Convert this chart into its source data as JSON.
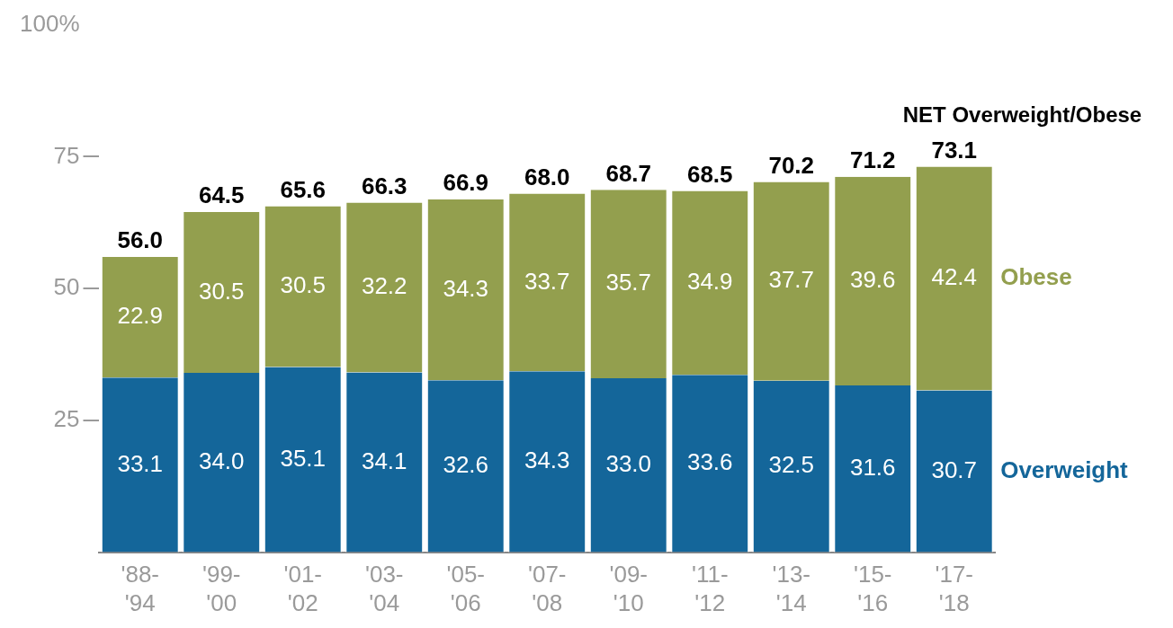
{
  "chart_data": {
    "type": "bar",
    "stacked": true,
    "categories": [
      "'88-'94",
      "'99-'00",
      "'01-'02",
      "'03-'04",
      "'05-'06",
      "'07-'08",
      "'09-'10",
      "'11-'12",
      "'13-'14",
      "'15-'16",
      "'17-'18"
    ],
    "series": [
      {
        "name": "Overweight",
        "color": "#14669a",
        "values": [
          33.1,
          34.0,
          35.1,
          34.1,
          32.6,
          34.3,
          33.0,
          33.6,
          32.5,
          31.6,
          30.7
        ],
        "value_labels": [
          "33.1",
          "34.0",
          "35.1",
          "34.1",
          "32.6",
          "34.3",
          "33.0",
          "33.6",
          "32.5",
          "31.6",
          "30.7"
        ]
      },
      {
        "name": "Obese",
        "color": "#939f4e",
        "values": [
          22.9,
          30.5,
          30.5,
          32.2,
          34.3,
          33.7,
          35.7,
          34.9,
          37.7,
          39.6,
          42.4
        ],
        "value_labels": [
          "22.9",
          "30.5",
          "30.5",
          "32.2",
          "34.3",
          "33.7",
          "35.7",
          "34.9",
          "37.7",
          "39.6",
          "42.4"
        ]
      }
    ],
    "totals": [
      "56.0",
      "64.5",
      "65.6",
      "66.3",
      "66.9",
      "68.0",
      "68.7",
      "68.5",
      "70.2",
      "71.2",
      "73.1"
    ],
    "annotations": [
      "NET Overweight/Obese"
    ],
    "ylim": [
      0,
      100
    ],
    "yticks": [
      25,
      50,
      75,
      {
        "value": 100,
        "label": "100%"
      }
    ],
    "grid": false,
    "legend": false
  }
}
